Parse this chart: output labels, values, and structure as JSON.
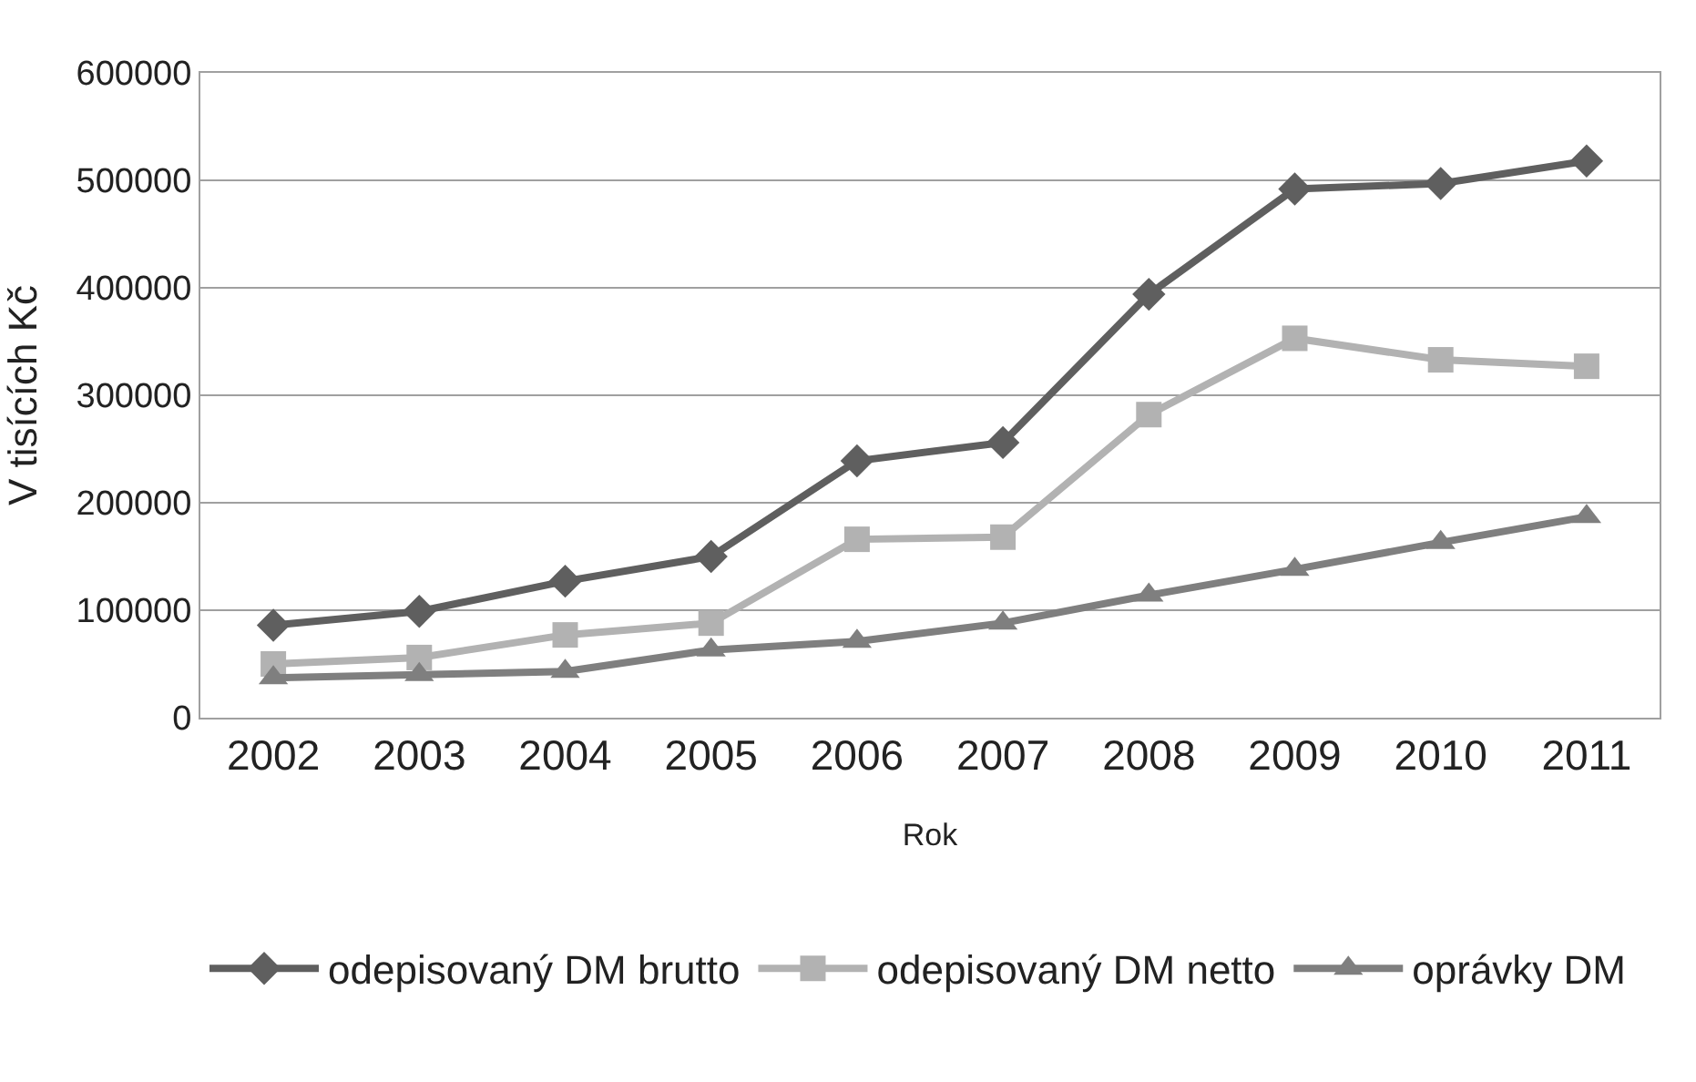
{
  "chart_data": {
    "type": "line",
    "xlabel": "Rok",
    "ylabel": "V tisících Kč",
    "categories": [
      "2002",
      "2003",
      "2004",
      "2005",
      "2006",
      "2007",
      "2008",
      "2009",
      "2010",
      "2011"
    ],
    "series": [
      {
        "name": "odepisovaný DM brutto",
        "color": "#5f5f5f",
        "marker": "diamond",
        "values": [
          86000,
          99000,
          127000,
          150000,
          239000,
          256000,
          394000,
          492000,
          497000,
          518000
        ]
      },
      {
        "name": "odepisovaný DM netto",
        "color": "#b2b2b2",
        "marker": "square",
        "values": [
          50000,
          56000,
          77000,
          88000,
          166000,
          168000,
          282000,
          353000,
          333000,
          327000
        ]
      },
      {
        "name": "oprávky DM",
        "color": "#7f7f7f",
        "marker": "triangle",
        "values": [
          37000,
          40000,
          43000,
          63000,
          71000,
          88000,
          114000,
          138000,
          163000,
          187000
        ]
      }
    ],
    "ylim": [
      0,
      600000
    ],
    "yticks": [
      0,
      100000,
      200000,
      300000,
      400000,
      500000,
      600000
    ],
    "grid": "y",
    "legend": "bottom",
    "line_style": "solid"
  }
}
